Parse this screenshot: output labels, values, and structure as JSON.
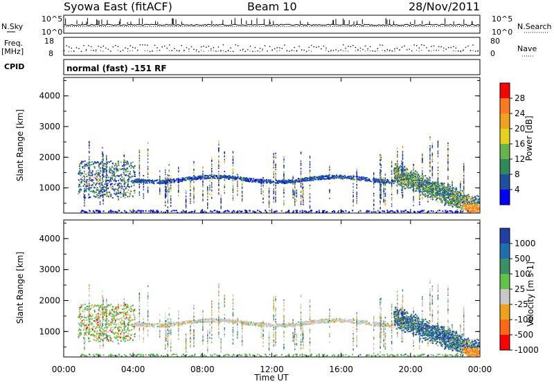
{
  "header": {
    "station": "Syowa East (fitACF)",
    "beam": "Beam 10",
    "date": "28/Nov/2011"
  },
  "strips": {
    "nsky_label": "N.Sky",
    "nsky_ticks": [
      "10^5",
      "10^0"
    ],
    "nsearch_label": "N.Search",
    "nsearch_ticks": [
      "10^5",
      "10^0"
    ],
    "freq_label_1": "Freq.",
    "freq_label_2": "[MHz]",
    "freq_ticks": [
      "18",
      "8"
    ],
    "nave_label": "Nave",
    "nave_ticks": [
      "80",
      "0"
    ],
    "cpid_label": "CPID",
    "cpid_text": "normal (fast) -151 RF"
  },
  "chart_data": [
    {
      "type": "heatmap",
      "name": "power",
      "ylabel": "Slant Range [km]",
      "xlabel": "Time UT",
      "x_ticks": [
        "00:00",
        "04:00",
        "08:00",
        "12:00",
        "16:00",
        "20:00",
        "00:00"
      ],
      "xlim_hours": [
        0,
        24
      ],
      "y_ticks": [
        "1000",
        "2000",
        "3000",
        "4000"
      ],
      "ylim": [
        180,
        4600
      ],
      "colorbar_label": "Power [dB]",
      "colorbar_ticks": [
        "4",
        "8",
        "12",
        "16",
        "20",
        "24",
        "28"
      ],
      "colors": [
        "#0000ff",
        "#1f4fa0",
        "#2e8b57",
        "#66b34c",
        "#e6d21e",
        "#f0a21a",
        "#ff7a1e",
        "#ff0000"
      ]
    },
    {
      "type": "heatmap",
      "name": "velocity",
      "ylabel": "Slant Range [km]",
      "xlabel": "Time UT",
      "x_ticks": [
        "00:00",
        "04:00",
        "08:00",
        "12:00",
        "16:00",
        "20:00",
        "00:00"
      ],
      "xlim_hours": [
        0,
        24
      ],
      "y_ticks": [
        "1000",
        "2000",
        "3000",
        "4000"
      ],
      "ylim": [
        180,
        4600
      ],
      "colorbar_label": "Velocity [m s-1]",
      "colorbar_ticks": [
        "1000",
        "500",
        "100",
        "25",
        "-25",
        "-100",
        "-500",
        "-1000"
      ],
      "colors": [
        "#1f3fa6",
        "#1f6fb0",
        "#3a8f63",
        "#62c24a",
        "#c8c8c8",
        "#f0a11c",
        "#ff6a10",
        "#ff0000"
      ]
    }
  ]
}
